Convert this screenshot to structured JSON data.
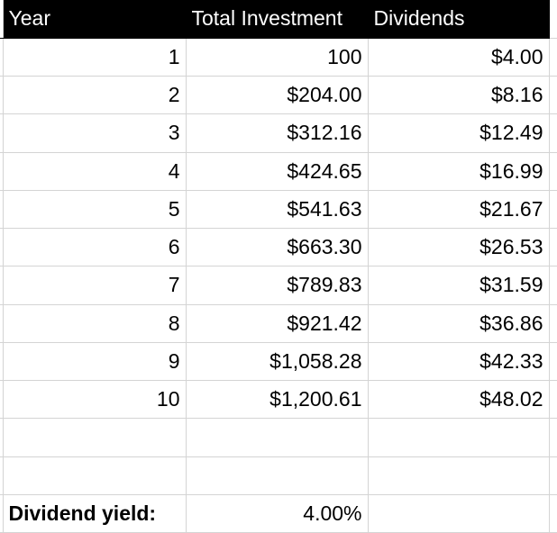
{
  "header": {
    "year": "Year",
    "total_investment": "Total Investment",
    "dividends": "Dividends"
  },
  "rows": [
    {
      "year": "1",
      "total": "100",
      "dividends": "$4.00"
    },
    {
      "year": "2",
      "total": "$204.00",
      "dividends": "$8.16"
    },
    {
      "year": "3",
      "total": "$312.16",
      "dividends": "$12.49"
    },
    {
      "year": "4",
      "total": "$424.65",
      "dividends": "$16.99"
    },
    {
      "year": "5",
      "total": "$541.63",
      "dividends": "$21.67"
    },
    {
      "year": "6",
      "total": "$663.30",
      "dividends": "$26.53"
    },
    {
      "year": "7",
      "total": "$789.83",
      "dividends": "$31.59"
    },
    {
      "year": "8",
      "total": "$921.42",
      "dividends": "$36.86"
    },
    {
      "year": "9",
      "total": "$1,058.28",
      "dividends": "$42.33"
    },
    {
      "year": "10",
      "total": "$1,200.61",
      "dividends": "$48.02"
    }
  ],
  "summary": {
    "label": "Dividend yield:",
    "value": "4.00%"
  }
}
